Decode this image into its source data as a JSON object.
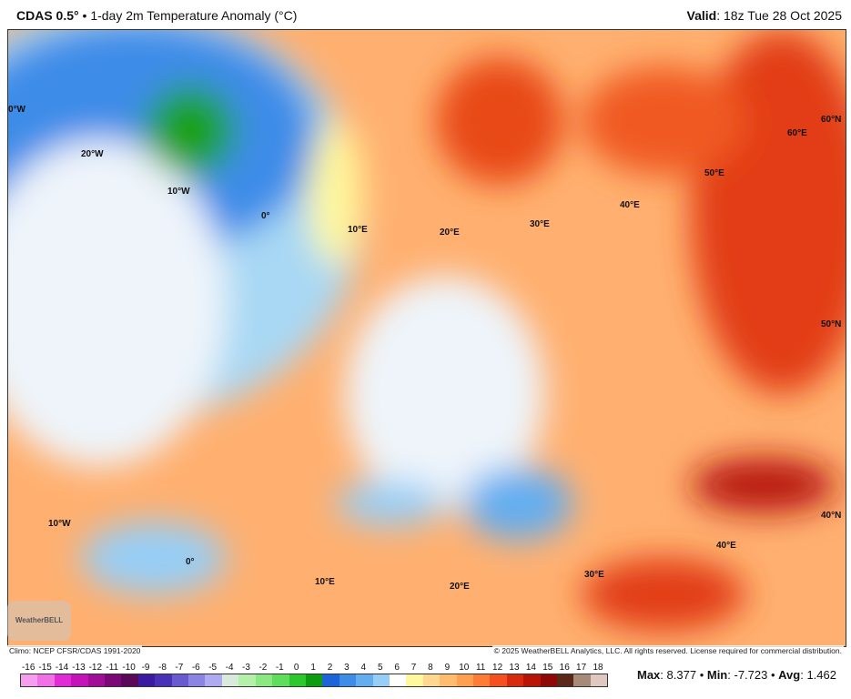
{
  "header": {
    "model": "CDAS 0.5°",
    "separator": "•",
    "title": "1-day 2m Temperature Anomaly (°C)",
    "valid_label": "Valid",
    "valid_value": ": 18z Tue 28 Oct 2025"
  },
  "map": {
    "labels": [
      "0°W",
      "20°W",
      "10°W",
      "0°",
      "10°E",
      "20°E",
      "30°E",
      "40°E",
      "50°E",
      "60°E",
      "60°N",
      "50°N",
      "40°N",
      "40°E",
      "30°E",
      "20°E",
      "10°E",
      "0°",
      "10°W"
    ],
    "logo": "WeatherBELL"
  },
  "footer": {
    "climo": "Climo: NCEP CFSR/CDAS 1991-2020",
    "copyright": "© 2025 WeatherBELL Analytics, LLC. All rights reserved. License required for commercial distribution."
  },
  "colorbar": {
    "labels": [
      "-16",
      "-15",
      "-14",
      "-13",
      "-12",
      "-11",
      "-10",
      "-9",
      "-8",
      "-7",
      "-6",
      "-5",
      "-4",
      "-3",
      "-2",
      "-1",
      "0",
      "1",
      "2",
      "3",
      "4",
      "5",
      "6",
      "7",
      "8",
      "9",
      "10",
      "11",
      "12",
      "13",
      "14",
      "15",
      "16",
      "17",
      "18"
    ],
    "colors": [
      "#f59ef0",
      "#f070e6",
      "#e22ad6",
      "#c414b8",
      "#a00e98",
      "#7c0878",
      "#5a0858",
      "#3a1aa0",
      "#4a32b8",
      "#6a5ad0",
      "#8c84e2",
      "#b0aaf0",
      "#d8eadc",
      "#b4f0a8",
      "#8ce882",
      "#5ede5a",
      "#2ec82e",
      "#0e9c10",
      "#1c64d8",
      "#3c8ce8",
      "#64aef0",
      "#96cef6",
      "#ffffff",
      "#fff89c",
      "#ffd890",
      "#ffbc6e",
      "#ffa050",
      "#ff7c36",
      "#f45020",
      "#d82a0c",
      "#b81408",
      "#900806",
      "#5a2818",
      "#a88a78",
      "#e0c8c0"
    ],
    "stats": {
      "max_label": "Max",
      "max": "8.377",
      "min_label": "Min",
      "min": "-7.723",
      "avg_label": "Avg",
      "avg": "1.462"
    }
  }
}
